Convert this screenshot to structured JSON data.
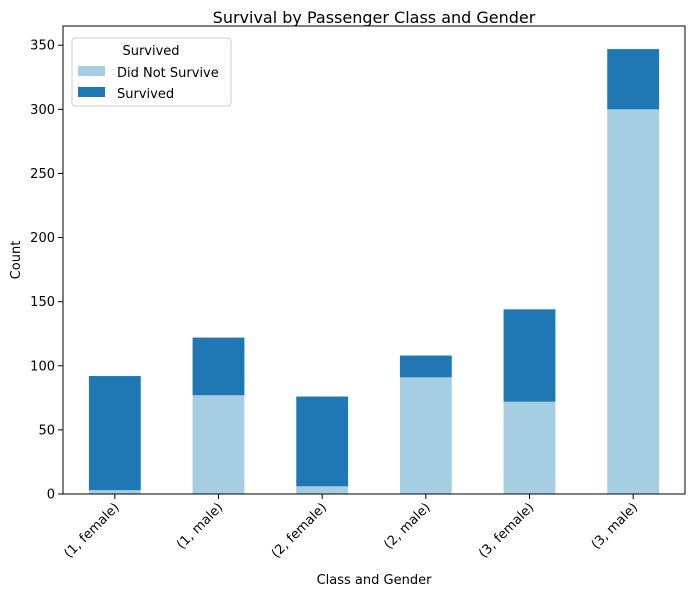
{
  "chart_data": {
    "type": "bar",
    "stacked": true,
    "title": "Survival by Passenger Class and Gender",
    "xlabel": "Class and Gender",
    "ylabel": "Count",
    "ylim": [
      0,
      365
    ],
    "yticks": [
      0,
      50,
      100,
      150,
      200,
      250,
      300,
      350
    ],
    "categories": [
      "(1, female)",
      "(1, male)",
      "(2, female)",
      "(2, male)",
      "(3, female)",
      "(3, male)"
    ],
    "series": [
      {
        "name": "Did Not Survive",
        "color": "#a6cee3",
        "values": [
          3,
          77,
          6,
          91,
          72,
          300
        ]
      },
      {
        "name": "Survived",
        "color": "#1f78b4",
        "values": [
          89,
          45,
          70,
          17,
          72,
          47
        ]
      }
    ],
    "legend": {
      "title": "Survived",
      "placement": "top-left"
    },
    "grid": false
  }
}
